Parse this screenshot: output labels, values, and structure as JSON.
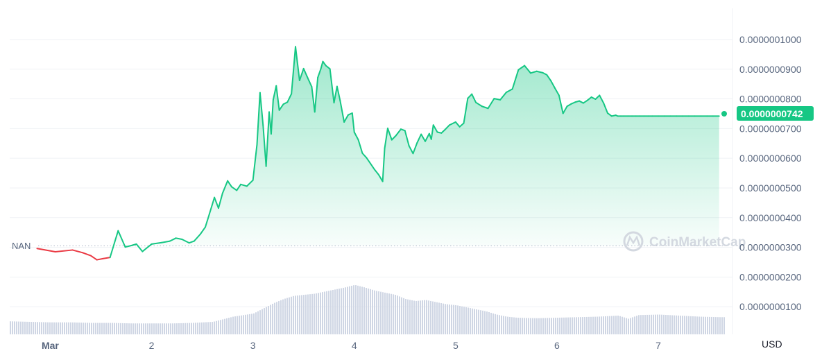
{
  "chart_data": {
    "type": "line",
    "currency_label": "USD",
    "baseline_label": "NAN",
    "baseline_value": 3.05e-08,
    "current_price_label": "0.0000000742",
    "current_price_value": 7.42e-08,
    "watermark": "CoinMarketCap",
    "y_ticks": [
      "0.0000001000",
      "0.0000000900",
      "0.0000000800",
      "0.0000000700",
      "0.0000000600",
      "0.0000000500",
      "0.0000000400",
      "0.0000000300",
      "0.0000000200",
      "0.0000000100"
    ],
    "y_tick_values": [
      1e-07,
      9e-08,
      8e-08,
      7e-08,
      6e-08,
      5e-08,
      4e-08,
      3e-08,
      2e-08,
      1e-08
    ],
    "ylim": [
      7e-10,
      1.105e-07
    ],
    "x_ticks": [
      "Mar",
      "2",
      "3",
      "4",
      "5",
      "6",
      "7"
    ],
    "x_tick_values": [
      0.4,
      1.4,
      2.4,
      3.4,
      4.4,
      5.4,
      6.4
    ],
    "xlim": [
      0,
      7.05
    ],
    "series": [
      {
        "x": [
          0.27,
          0.45,
          0.62,
          0.72,
          0.8,
          0.86,
          0.92,
          0.99,
          1.07,
          1.14,
          1.2,
          1.25,
          1.31,
          1.4,
          1.5,
          1.58,
          1.64,
          1.7,
          1.77,
          1.82,
          1.88,
          1.93,
          1.97,
          2.02,
          2.06,
          2.1,
          2.15,
          2.19,
          2.24,
          2.28,
          2.34,
          2.4,
          2.44,
          2.47,
          2.5,
          2.53,
          2.56,
          2.58,
          2.6,
          2.63,
          2.66,
          2.7,
          2.74,
          2.78,
          2.82,
          2.86,
          2.9,
          2.94,
          2.98,
          3.01,
          3.04,
          3.07,
          3.09,
          3.12,
          3.16,
          3.2,
          3.23,
          3.26,
          3.3,
          3.34,
          3.38,
          3.4,
          3.44,
          3.48,
          3.52,
          3.56,
          3.6,
          3.64,
          3.68,
          3.7,
          3.73,
          3.77,
          3.81,
          3.86,
          3.9,
          3.94,
          3.98,
          4.02,
          4.06,
          4.1,
          4.14,
          4.16,
          4.18,
          4.22,
          4.26,
          4.3,
          4.34,
          4.4,
          4.44,
          4.48,
          4.52,
          4.56,
          4.6,
          4.66,
          4.72,
          4.78,
          4.84,
          4.9,
          4.96,
          5.02,
          5.08,
          5.14,
          5.2,
          5.26,
          5.3,
          5.34,
          5.38,
          5.42,
          5.46,
          5.5,
          5.54,
          5.58,
          5.62,
          5.66,
          5.7,
          5.74,
          5.78,
          5.82,
          5.86,
          5.9,
          5.94,
          5.98,
          6.0,
          6.03,
          6.06,
          6.1,
          6.14,
          6.18,
          6.22,
          6.26,
          6.3,
          6.34,
          6.4,
          6.46,
          6.52,
          6.58,
          6.64,
          6.7,
          6.76,
          6.82,
          6.88,
          6.94,
          7.0
        ],
        "y": [
          2.96e-08,
          2.85e-08,
          2.91e-08,
          2.82e-08,
          2.72e-08,
          2.58e-08,
          2.62e-08,
          2.66e-08,
          3.56e-08,
          3.01e-08,
          3.06e-08,
          3.11e-08,
          2.86e-08,
          3.11e-08,
          3.16e-08,
          3.21e-08,
          3.31e-08,
          3.27e-08,
          3.15e-08,
          3.21e-08,
          3.44e-08,
          3.68e-08,
          4.12e-08,
          4.68e-08,
          4.32e-08,
          4.82e-08,
          5.24e-08,
          5.04e-08,
          4.92e-08,
          5.12e-08,
          5.06e-08,
          5.26e-08,
          6.46e-08,
          8.21e-08,
          7.12e-08,
          5.73e-08,
          7.56e-08,
          6.82e-08,
          7.97e-08,
          8.44e-08,
          7.62e-08,
          7.82e-08,
          7.89e-08,
          8.17e-08,
          9.76e-08,
          8.62e-08,
          9.02e-08,
          8.71e-08,
          8.41e-08,
          7.56e-08,
          8.72e-08,
          9.01e-08,
          9.26e-08,
          9.12e-08,
          9.01e-08,
          7.87e-08,
          8.42e-08,
          7.95e-08,
          7.22e-08,
          7.46e-08,
          7.52e-08,
          6.88e-08,
          6.62e-08,
          6.17e-08,
          6.02e-08,
          5.82e-08,
          5.62e-08,
          5.45e-08,
          5.22e-08,
          6.34e-08,
          7.01e-08,
          6.62e-08,
          6.76e-08,
          6.98e-08,
          6.93e-08,
          6.42e-08,
          6.16e-08,
          6.52e-08,
          6.81e-08,
          6.57e-08,
          6.83e-08,
          6.64e-08,
          7.12e-08,
          6.88e-08,
          6.85e-08,
          6.98e-08,
          7.12e-08,
          7.22e-08,
          7.06e-08,
          7.18e-08,
          8.02e-08,
          8.16e-08,
          7.88e-08,
          7.75e-08,
          7.68e-08,
          8.01e-08,
          7.97e-08,
          8.22e-08,
          8.33e-08,
          8.98e-08,
          9.12e-08,
          8.87e-08,
          8.93e-08,
          8.88e-08,
          8.81e-08,
          8.61e-08,
          8.36e-08,
          8.12e-08,
          7.51e-08,
          7.75e-08,
          7.83e-08,
          7.89e-08,
          7.93e-08,
          7.86e-08,
          7.95e-08,
          8.06e-08,
          7.99e-08,
          8.12e-08,
          7.86e-08,
          7.52e-08,
          7.42e-08,
          7.45e-08,
          7.42e-08,
          7.42e-08,
          7.42e-08,
          7.42e-08,
          7.42e-08,
          7.42e-08,
          7.42e-08,
          7.42e-08,
          7.42e-08,
          7.42e-08,
          7.42e-08,
          7.42e-08,
          7.42e-08,
          7.42e-08,
          7.42e-08,
          7.42e-08,
          7.42e-08,
          7.42e-08,
          7.42e-08,
          7.42e-08,
          7.42e-08
        ],
        "color_above": "#16c784",
        "color_below": "#ea3943"
      }
    ],
    "volume": {
      "x": [
        0.0,
        0.2,
        0.4,
        0.6,
        0.8,
        1.0,
        1.2,
        1.4,
        1.6,
        1.8,
        2.0,
        2.2,
        2.4,
        2.5,
        2.6,
        2.7,
        2.8,
        2.9,
        3.0,
        3.1,
        3.2,
        3.3,
        3.4,
        3.5,
        3.6,
        3.7,
        3.8,
        3.9,
        4.0,
        4.1,
        4.2,
        4.3,
        4.4,
        4.5,
        4.6,
        4.7,
        4.8,
        4.9,
        5.0,
        5.2,
        5.4,
        5.6,
        5.8,
        6.0,
        6.1,
        6.2,
        6.4,
        6.6,
        6.8,
        7.0
      ],
      "values": [
        0.25,
        0.24,
        0.23,
        0.23,
        0.22,
        0.22,
        0.21,
        0.21,
        0.21,
        0.22,
        0.24,
        0.34,
        0.4,
        0.5,
        0.6,
        0.68,
        0.74,
        0.76,
        0.78,
        0.82,
        0.86,
        0.9,
        0.95,
        0.9,
        0.84,
        0.8,
        0.76,
        0.68,
        0.64,
        0.66,
        0.62,
        0.58,
        0.56,
        0.52,
        0.48,
        0.44,
        0.38,
        0.34,
        0.32,
        0.31,
        0.32,
        0.33,
        0.34,
        0.36,
        0.3,
        0.37,
        0.38,
        0.36,
        0.34,
        0.33
      ],
      "ylim": [
        0,
        1
      ]
    }
  }
}
